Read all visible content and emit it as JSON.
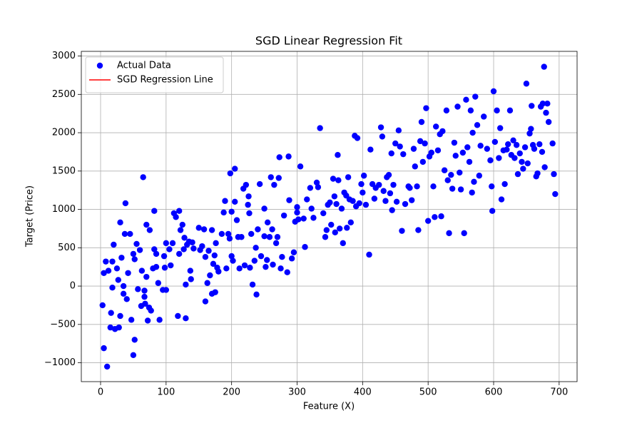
{
  "chart_data": {
    "type": "scatter",
    "title": "SGD Linear Regression Fit",
    "x_label": "Feature (X)",
    "y_label": "Target (Price)",
    "xlim": [
      -29.4,
      727.4
    ],
    "ylim": [
      -1246,
      3061
    ],
    "xticks": [
      0,
      100,
      200,
      300,
      400,
      500,
      600,
      700
    ],
    "yticks": [
      {
        "value": -1000,
        "label": "−1000"
      },
      {
        "value": -500,
        "label": "−500"
      },
      0,
      500,
      1000,
      1500,
      2000,
      2500,
      3000
    ],
    "grid": true,
    "legend": "upper-left",
    "series": [
      {
        "name": "Actual Data",
        "color": "#0000ff",
        "x": [
          3,
          5,
          8,
          10,
          5,
          12,
          15,
          16,
          18,
          20,
          22,
          18,
          25,
          27,
          30,
          30,
          28,
          32,
          35,
          35,
          37,
          38,
          40,
          42,
          45,
          47,
          50,
          50,
          52,
          52,
          55,
          57,
          60,
          62,
          63,
          65,
          67,
          67,
          68,
          70,
          70,
          72,
          74,
          75,
          77,
          80,
          82,
          82,
          85,
          85,
          88,
          90,
          95,
          97,
          98,
          100,
          100,
          105,
          107,
          110,
          112,
          115,
          118,
          120,
          120,
          122,
          125,
          127,
          128,
          130,
          130,
          132,
          135,
          137,
          138,
          140,
          142,
          150,
          152,
          155,
          158,
          160,
          160,
          163,
          165,
          167,
          170,
          170,
          172,
          174,
          175,
          176,
          178,
          180,
          185,
          188,
          190,
          192,
          195,
          197,
          198,
          200,
          200,
          202,
          205,
          205,
          208,
          210,
          212,
          215,
          218,
          220,
          222,
          225,
          226,
          227,
          228,
          230,
          232,
          235,
          237,
          238,
          240,
          243,
          245,
          250,
          250,
          252,
          254,
          255,
          258,
          260,
          262,
          263,
          265,
          268,
          270,
          272,
          273,
          275,
          277,
          280,
          285,
          287,
          288,
          292,
          295,
          297,
          300,
          300,
          302,
          305,
          310,
          312,
          315,
          320,
          322,
          325,
          330,
          332,
          335,
          340,
          343,
          345,
          347,
          350,
          352,
          355,
          357,
          358,
          360,
          362,
          363,
          365,
          368,
          370,
          372,
          375,
          376,
          378,
          380,
          382,
          385,
          388,
          390,
          392,
          395,
          398,
          400,
          402,
          405,
          410,
          412,
          415,
          418,
          420,
          425,
          428,
          430,
          432,
          435,
          437,
          440,
          442,
          444,
          445,
          447,
          450,
          452,
          455,
          457,
          460,
          462,
          465,
          470,
          472,
          475,
          478,
          480,
          483,
          485,
          488,
          490,
          492,
          495,
          497,
          500,
          502,
          505,
          508,
          510,
          512,
          515,
          518,
          520,
          522,
          525,
          528,
          530,
          532,
          535,
          537,
          540,
          542,
          545,
          548,
          550,
          553,
          555,
          558,
          560,
          563,
          565,
          567,
          568,
          570,
          572,
          575,
          578,
          580,
          585,
          590,
          595,
          597,
          598,
          600,
          602,
          605,
          608,
          610,
          612,
          615,
          617,
          620,
          622,
          625,
          627,
          630,
          632,
          635,
          637,
          640,
          643,
          645,
          648,
          650,
          652,
          655,
          657,
          658,
          660,
          662,
          665,
          667,
          670,
          672,
          674,
          675,
          677,
          678,
          680,
          682,
          684,
          690,
          692,
          694
        ],
        "values": [
          -250,
          -810,
          320,
          -1050,
          170,
          200,
          -540,
          -350,
          320,
          540,
          -560,
          -20,
          230,
          80,
          830,
          -390,
          -540,
          370,
          0,
          -100,
          680,
          1080,
          -170,
          170,
          680,
          -440,
          -900,
          420,
          350,
          -700,
          550,
          -40,
          470,
          -260,
          200,
          1420,
          -60,
          -140,
          -230,
          120,
          800,
          -450,
          -280,
          730,
          -320,
          230,
          980,
          480,
          250,
          420,
          40,
          -440,
          -50,
          390,
          240,
          -50,
          560,
          480,
          270,
          560,
          950,
          900,
          -390,
          980,
          420,
          730,
          800,
          480,
          630,
          20,
          -420,
          540,
          580,
          200,
          90,
          570,
          490,
          760,
          470,
          520,
          740,
          -200,
          380,
          40,
          460,
          140,
          -100,
          730,
          290,
          400,
          -80,
          560,
          240,
          190,
          680,
          960,
          1110,
          230,
          680,
          620,
          1470,
          390,
          970,
          330,
          1100,
          1530,
          860,
          640,
          230,
          640,
          1270,
          270,
          1320,
          1060,
          1170,
          950,
          240,
          680,
          20,
          330,
          500,
          -110,
          740,
          1330,
          390,
          650,
          1010,
          250,
          340,
          830,
          640,
          1420,
          740,
          280,
          1320,
          560,
          640,
          1410,
          1680,
          230,
          380,
          920,
          180,
          1690,
          1120,
          360,
          440,
          840,
          960,
          1030,
          870,
          1560,
          880,
          510,
          1130,
          1280,
          1010,
          890,
          1350,
          1290,
          2060,
          950,
          640,
          730,
          1060,
          1090,
          800,
          1400,
          1170,
          700,
          1070,
          1710,
          1380,
          750,
          1010,
          560,
          1220,
          1180,
          760,
          1420,
          1130,
          830,
          1110,
          1960,
          1040,
          1930,
          1080,
          1330,
          1220,
          1440,
          1060,
          410,
          1780,
          1330,
          1140,
          1280,
          1320,
          2070,
          1950,
          1240,
          1110,
          1420,
          1450,
          1210,
          1730,
          990,
          1320,
          1860,
          1100,
          2030,
          1820,
          720,
          1720,
          1070,
          1300,
          1280,
          1120,
          1790,
          1560,
          1300,
          730,
          1890,
          2140,
          1620,
          1860,
          2320,
          850,
          1690,
          1740,
          1300,
          900,
          2080,
          1770,
          1980,
          910,
          2020,
          1510,
          2290,
          1380,
          690,
          1450,
          1270,
          1870,
          1700,
          2340,
          1480,
          1260,
          1740,
          690,
          2430,
          1810,
          1620,
          2290,
          1220,
          2000,
          1360,
          2470,
          2100,
          1440,
          1830,
          2210,
          1790,
          1640,
          1300,
          980,
          2540,
          1880,
          2290,
          1670,
          2060,
          1130,
          1770,
          1330,
          1780,
          1850,
          2290,
          1710,
          1900,
          1670,
          1840,
          1460,
          1730,
          1620,
          1530,
          1810,
          2640,
          1600,
          1990,
          2050,
          2350,
          1840,
          1790,
          1430,
          1470,
          1850,
          2340,
          1750,
          2380,
          2860,
          1550,
          2260,
          2380,
          2140,
          1860,
          1460,
          1200
        ]
      },
      {
        "name": "SGD Regression Line",
        "color": "#ff0000"
      }
    ]
  }
}
